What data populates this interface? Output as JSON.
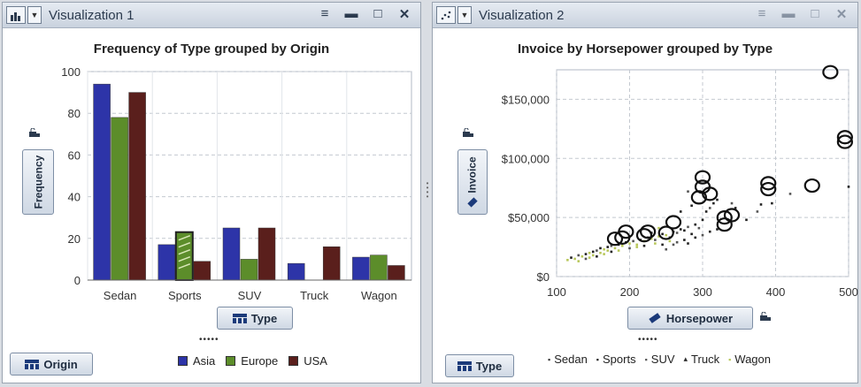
{
  "viz1": {
    "title": "Visualization 1",
    "chart_title": "Frequency of Type grouped by Origin",
    "y_role": "Frequency",
    "x_role": "Type",
    "group_role": "Origin",
    "legend_dots": "•••••",
    "icon": "bar-chart-icon"
  },
  "viz2": {
    "title": "Visualization 2",
    "chart_title": "Invoice by Horsepower grouped by Type",
    "y_role": "Invoice",
    "x_role": "Horsepower",
    "group_role": "Type",
    "legend_dots": "•••••",
    "icon": "scatter-plot-icon"
  },
  "window_controls": {
    "menu": "≡",
    "minimize": "▬",
    "maximize": "□",
    "close": "✕"
  },
  "chart_data": [
    {
      "type": "bar",
      "title": "Frequency of Type grouped by Origin",
      "xlabel": "Type",
      "ylabel": "Frequency",
      "categories": [
        "Sedan",
        "Sports",
        "SUV",
        "Truck",
        "Wagon"
      ],
      "series": [
        {
          "name": "Asia",
          "color": "#2d34a8",
          "values": [
            94,
            17,
            25,
            8,
            11
          ]
        },
        {
          "name": "Europe",
          "color": "#5c8d2a",
          "values": [
            78,
            23,
            10,
            0,
            12
          ]
        },
        {
          "name": "USA",
          "color": "#5a1f1c",
          "values": [
            90,
            9,
            25,
            16,
            7
          ]
        }
      ],
      "ylim": [
        0,
        100
      ],
      "yticks": [
        "0",
        "20",
        "40",
        "60",
        "80",
        "100"
      ],
      "grid": true,
      "legend_position": "bottom",
      "highlighted": {
        "category": "Sports",
        "series": "Europe"
      }
    },
    {
      "type": "scatter",
      "title": "Invoice by Horsepower grouped by Type",
      "xlabel": "Horsepower",
      "ylabel": "Invoice",
      "xlim": [
        100,
        500
      ],
      "ylim": [
        0,
        175000
      ],
      "xticks": [
        "100",
        "200",
        "300",
        "400",
        "500"
      ],
      "yticks": [
        "$0",
        "$50,000",
        "$100,000",
        "$150,000"
      ],
      "grid": true,
      "legend_position": "bottom",
      "series": [
        {
          "name": "Sedan",
          "color": "#3a3a3a"
        },
        {
          "name": "Sports",
          "color": "#1f1f1f"
        },
        {
          "name": "SUV",
          "color": "#555555"
        },
        {
          "name": "Truck",
          "color": "#2a2a2a"
        },
        {
          "name": "Wagon",
          "color": "#b8c75a"
        }
      ],
      "highlighted_points": [
        [
          475,
          173000
        ],
        [
          495,
          118000
        ],
        [
          495,
          114000
        ],
        [
          450,
          77000
        ],
        [
          390,
          79000
        ],
        [
          390,
          74000
        ],
        [
          340,
          52000
        ],
        [
          330,
          50000
        ],
        [
          330,
          44000
        ],
        [
          300,
          84000
        ],
        [
          300,
          76000
        ],
        [
          310,
          70000
        ],
        [
          295,
          67000
        ],
        [
          260,
          46000
        ],
        [
          250,
          37000
        ],
        [
          225,
          38000
        ],
        [
          220,
          35000
        ],
        [
          195,
          38000
        ],
        [
          190,
          33000
        ],
        [
          180,
          32000
        ]
      ],
      "points": [
        [
          115,
          14000
        ],
        [
          120,
          16000
        ],
        [
          125,
          15000
        ],
        [
          130,
          18000
        ],
        [
          135,
          17000
        ],
        [
          140,
          19000
        ],
        [
          145,
          20000
        ],
        [
          150,
          21000
        ],
        [
          150,
          18000
        ],
        [
          155,
          22000
        ],
        [
          160,
          20000
        ],
        [
          160,
          24000
        ],
        [
          165,
          23000
        ],
        [
          170,
          25000
        ],
        [
          170,
          22000
        ],
        [
          175,
          26000
        ],
        [
          180,
          24000
        ],
        [
          185,
          27000
        ],
        [
          190,
          26000
        ],
        [
          195,
          29000
        ],
        [
          200,
          28000
        ],
        [
          205,
          30000
        ],
        [
          210,
          27000
        ],
        [
          215,
          31000
        ],
        [
          220,
          30000
        ],
        [
          225,
          33000
        ],
        [
          230,
          32000
        ],
        [
          235,
          31000
        ],
        [
          240,
          34000
        ],
        [
          245,
          36000
        ],
        [
          250,
          35000
        ],
        [
          255,
          33000
        ],
        [
          260,
          38000
        ],
        [
          265,
          37000
        ],
        [
          270,
          40000
        ],
        [
          275,
          39000
        ],
        [
          280,
          42000
        ],
        [
          285,
          36000
        ],
        [
          290,
          44000
        ],
        [
          295,
          41000
        ],
        [
          300,
          48000
        ],
        [
          305,
          55000
        ],
        [
          310,
          58000
        ],
        [
          315,
          62000
        ],
        [
          285,
          60000
        ],
        [
          280,
          72000
        ],
        [
          270,
          55000
        ],
        [
          320,
          65000
        ],
        [
          340,
          62000
        ],
        [
          345,
          58000
        ],
        [
          360,
          48000
        ],
        [
          375,
          55000
        ],
        [
          380,
          61000
        ],
        [
          395,
          62000
        ],
        [
          420,
          70000
        ],
        [
          500,
          76000
        ],
        [
          130,
          13000
        ],
        [
          140,
          15000
        ],
        [
          145,
          16000
        ],
        [
          155,
          17000
        ],
        [
          165,
          19000
        ],
        [
          175,
          21000
        ],
        [
          185,
          22000
        ],
        [
          200,
          24000
        ],
        [
          210,
          25000
        ],
        [
          220,
          26000
        ],
        [
          235,
          28000
        ],
        [
          245,
          27000
        ],
        [
          255,
          30000
        ],
        [
          265,
          29000
        ],
        [
          275,
          31000
        ],
        [
          290,
          33000
        ],
        [
          300,
          35000
        ],
        [
          310,
          38000
        ],
        [
          320,
          40000
        ],
        [
          250,
          23000
        ],
        [
          240,
          41000
        ],
        [
          230,
          37000
        ],
        [
          260,
          27000
        ],
        [
          280,
          28000
        ]
      ]
    }
  ]
}
